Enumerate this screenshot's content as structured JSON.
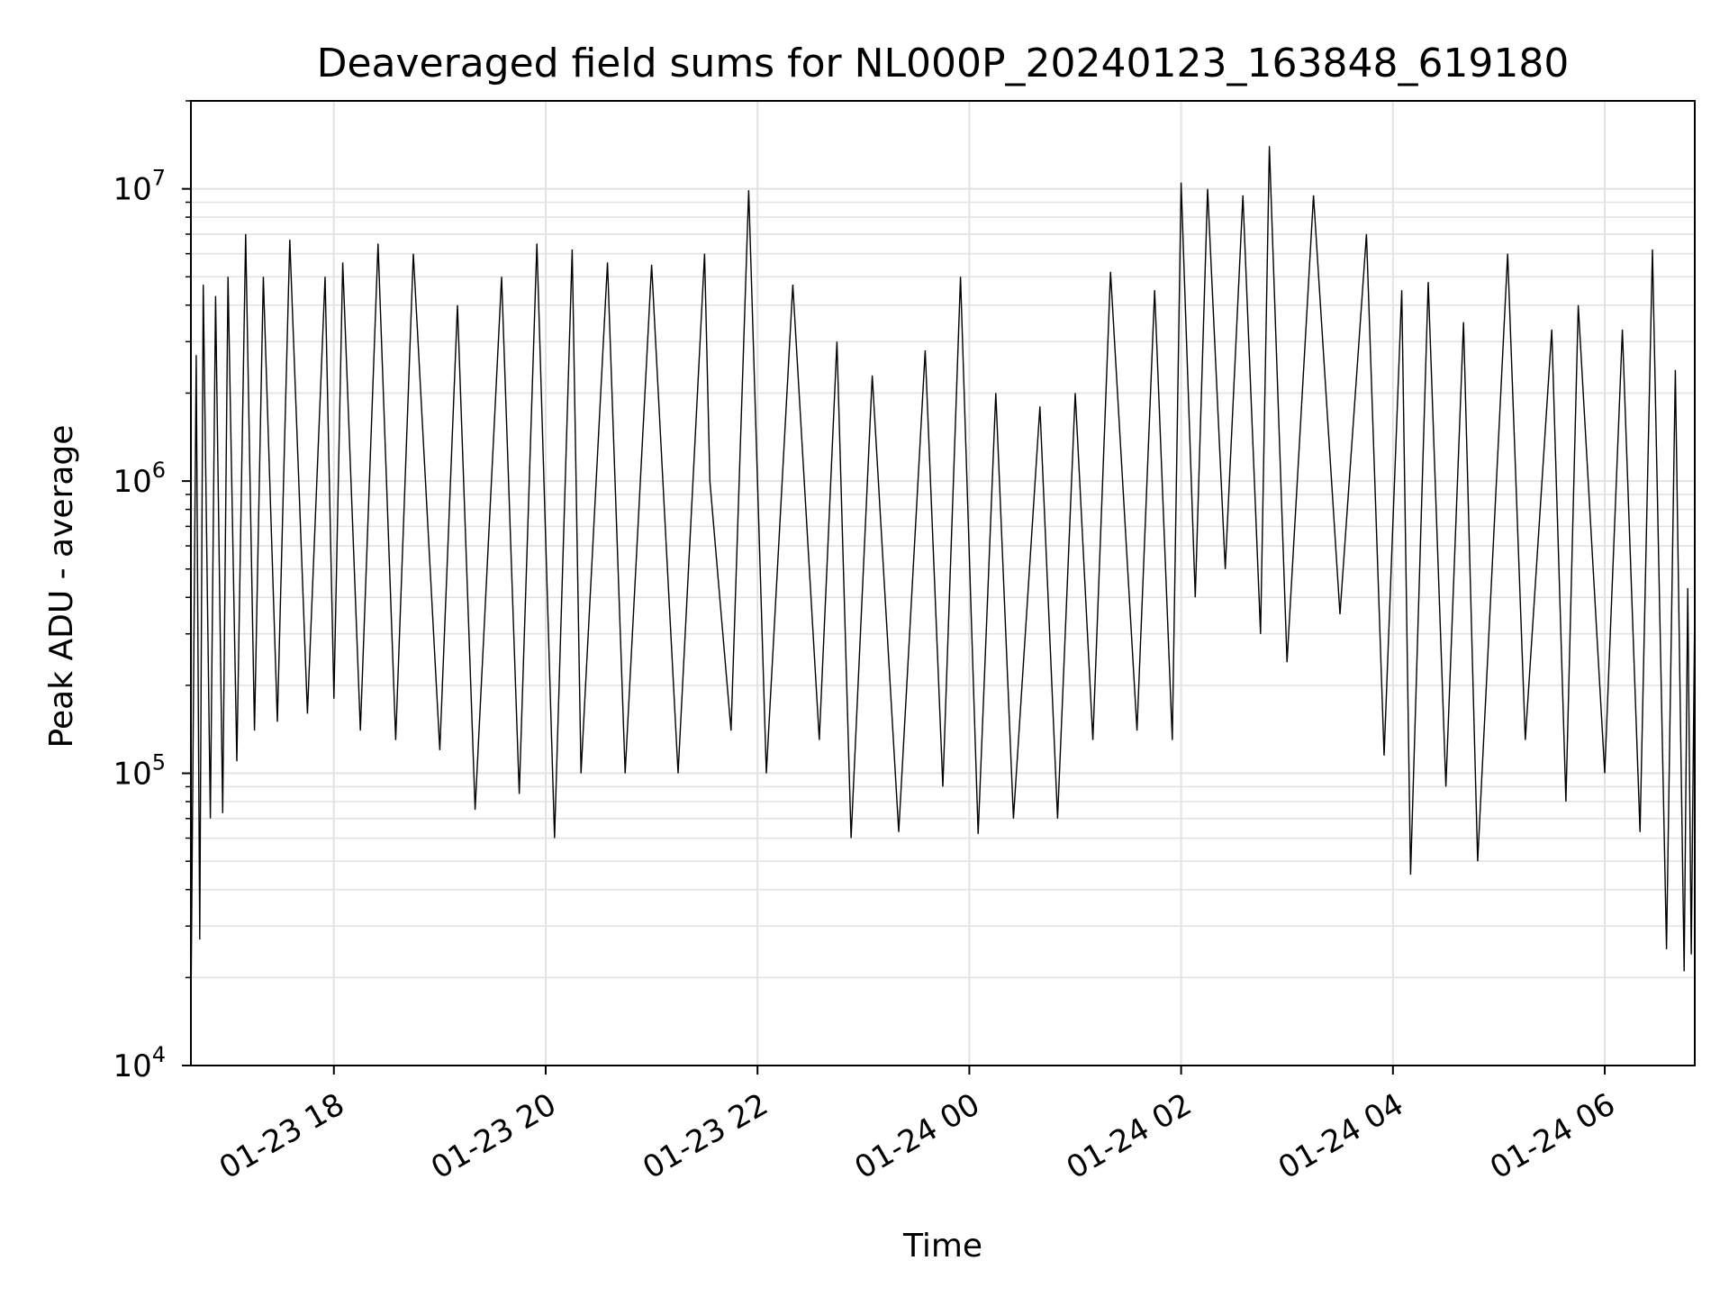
{
  "chart_data": {
    "type": "line",
    "title": "Deaveraged field sums for NL000P_20240123_163848_619180",
    "xlabel": "Time",
    "ylabel": "Peak ADU - average",
    "yscale": "log",
    "ylim": [
      10000,
      20000000
    ],
    "xlim": [
      "2024-01-23 16:39",
      "2024-01-24 06:51"
    ],
    "grid": true,
    "line_color": "#000000",
    "grid_color": "#e3e3e3",
    "x_ticks": [
      {
        "time": "2024-01-23 18:00",
        "label": "01-23 18"
      },
      {
        "time": "2024-01-23 20:00",
        "label": "01-23 20"
      },
      {
        "time": "2024-01-23 22:00",
        "label": "01-23 22"
      },
      {
        "time": "2024-01-24 00:00",
        "label": "01-24 00"
      },
      {
        "time": "2024-01-24 02:00",
        "label": "01-24 02"
      },
      {
        "time": "2024-01-24 04:00",
        "label": "01-24 04"
      },
      {
        "time": "2024-01-24 06:00",
        "label": "01-24 06"
      }
    ],
    "y_ticks": [
      {
        "value": 10000,
        "base": "10",
        "exp": "4"
      },
      {
        "value": 100000,
        "base": "10",
        "exp": "5"
      },
      {
        "value": 1000000,
        "base": "10",
        "exp": "6"
      },
      {
        "value": 10000000,
        "base": "10",
        "exp": "7"
      }
    ],
    "series": [
      {
        "points": [
          [
            "2024-01-23 16:39",
            15000
          ],
          [
            "2024-01-23 16:42",
            2700000
          ],
          [
            "2024-01-23 16:44",
            27000
          ],
          [
            "2024-01-23 16:46",
            4700000
          ],
          [
            "2024-01-23 16:50",
            70000
          ],
          [
            "2024-01-23 16:53",
            4300000
          ],
          [
            "2024-01-23 16:57",
            73000
          ],
          [
            "2024-01-23 17:00",
            5000000
          ],
          [
            "2024-01-23 17:05",
            110000
          ],
          [
            "2024-01-23 17:10",
            7000000
          ],
          [
            "2024-01-23 17:15",
            140000
          ],
          [
            "2024-01-23 17:20",
            5000000
          ],
          [
            "2024-01-23 17:28",
            150000
          ],
          [
            "2024-01-23 17:35",
            6700000
          ],
          [
            "2024-01-23 17:45",
            160000
          ],
          [
            "2024-01-23 17:55",
            5000000
          ],
          [
            "2024-01-23 18:00",
            180000
          ],
          [
            "2024-01-23 18:05",
            5600000
          ],
          [
            "2024-01-23 18:15",
            140000
          ],
          [
            "2024-01-23 18:25",
            6500000
          ],
          [
            "2024-01-23 18:35",
            130000
          ],
          [
            "2024-01-23 18:45",
            6000000
          ],
          [
            "2024-01-23 19:00",
            120000
          ],
          [
            "2024-01-23 19:10",
            4000000
          ],
          [
            "2024-01-23 19:20",
            75000
          ],
          [
            "2024-01-23 19:35",
            5000000
          ],
          [
            "2024-01-23 19:45",
            85000
          ],
          [
            "2024-01-23 19:55",
            6500000
          ],
          [
            "2024-01-23 20:05",
            60000
          ],
          [
            "2024-01-23 20:15",
            6200000
          ],
          [
            "2024-01-23 20:20",
            100000
          ],
          [
            "2024-01-23 20:35",
            5600000
          ],
          [
            "2024-01-23 20:45",
            100000
          ],
          [
            "2024-01-23 21:00",
            5500000
          ],
          [
            "2024-01-23 21:15",
            100000
          ],
          [
            "2024-01-23 21:30",
            6000000
          ],
          [
            "2024-01-23 21:33",
            1000000
          ],
          [
            "2024-01-23 21:45",
            140000
          ],
          [
            "2024-01-23 21:55",
            9900000
          ],
          [
            "2024-01-23 22:05",
            100000
          ],
          [
            "2024-01-23 22:20",
            4700000
          ],
          [
            "2024-01-23 22:35",
            130000
          ],
          [
            "2024-01-23 22:45",
            3000000
          ],
          [
            "2024-01-23 22:53",
            60000
          ],
          [
            "2024-01-23 23:05",
            2300000
          ],
          [
            "2024-01-23 23:20",
            63000
          ],
          [
            "2024-01-23 23:35",
            2800000
          ],
          [
            "2024-01-23 23:45",
            90000
          ],
          [
            "2024-01-23 23:55",
            5000000
          ],
          [
            "2024-01-24 00:05",
            62000
          ],
          [
            "2024-01-24 00:15",
            2000000
          ],
          [
            "2024-01-24 00:25",
            70000
          ],
          [
            "2024-01-24 00:40",
            1800000
          ],
          [
            "2024-01-24 00:50",
            70000
          ],
          [
            "2024-01-24 01:00",
            2000000
          ],
          [
            "2024-01-24 01:10",
            130000
          ],
          [
            "2024-01-24 01:20",
            5200000
          ],
          [
            "2024-01-24 01:35",
            140000
          ],
          [
            "2024-01-24 01:45",
            4500000
          ],
          [
            "2024-01-24 01:55",
            130000
          ],
          [
            "2024-01-24 02:00",
            10500000
          ],
          [
            "2024-01-24 02:08",
            400000
          ],
          [
            "2024-01-24 02:15",
            10000000
          ],
          [
            "2024-01-24 02:25",
            500000
          ],
          [
            "2024-01-24 02:35",
            9500000
          ],
          [
            "2024-01-24 02:45",
            300000
          ],
          [
            "2024-01-24 02:50",
            14000000
          ],
          [
            "2024-01-24 03:00",
            240000
          ],
          [
            "2024-01-24 03:15",
            9500000
          ],
          [
            "2024-01-24 03:30",
            350000
          ],
          [
            "2024-01-24 03:45",
            7000000
          ],
          [
            "2024-01-24 03:55",
            115000
          ],
          [
            "2024-01-24 04:05",
            4500000
          ],
          [
            "2024-01-24 04:10",
            45000
          ],
          [
            "2024-01-24 04:20",
            4800000
          ],
          [
            "2024-01-24 04:30",
            90000
          ],
          [
            "2024-01-24 04:40",
            3500000
          ],
          [
            "2024-01-24 04:48",
            50000
          ],
          [
            "2024-01-24 05:05",
            6000000
          ],
          [
            "2024-01-24 05:15",
            130000
          ],
          [
            "2024-01-24 05:30",
            3300000
          ],
          [
            "2024-01-24 05:38",
            80000
          ],
          [
            "2024-01-24 05:45",
            4000000
          ],
          [
            "2024-01-24 06:00",
            100000
          ],
          [
            "2024-01-24 06:10",
            3300000
          ],
          [
            "2024-01-24 06:20",
            63000
          ],
          [
            "2024-01-24 06:27",
            6200000
          ],
          [
            "2024-01-24 06:35",
            25000
          ],
          [
            "2024-01-24 06:40",
            2400000
          ],
          [
            "2024-01-24 06:45",
            21000
          ],
          [
            "2024-01-24 06:47",
            430000
          ],
          [
            "2024-01-24 06:49",
            24000
          ],
          [
            "2024-01-24 06:51",
            380000
          ]
        ]
      }
    ]
  }
}
